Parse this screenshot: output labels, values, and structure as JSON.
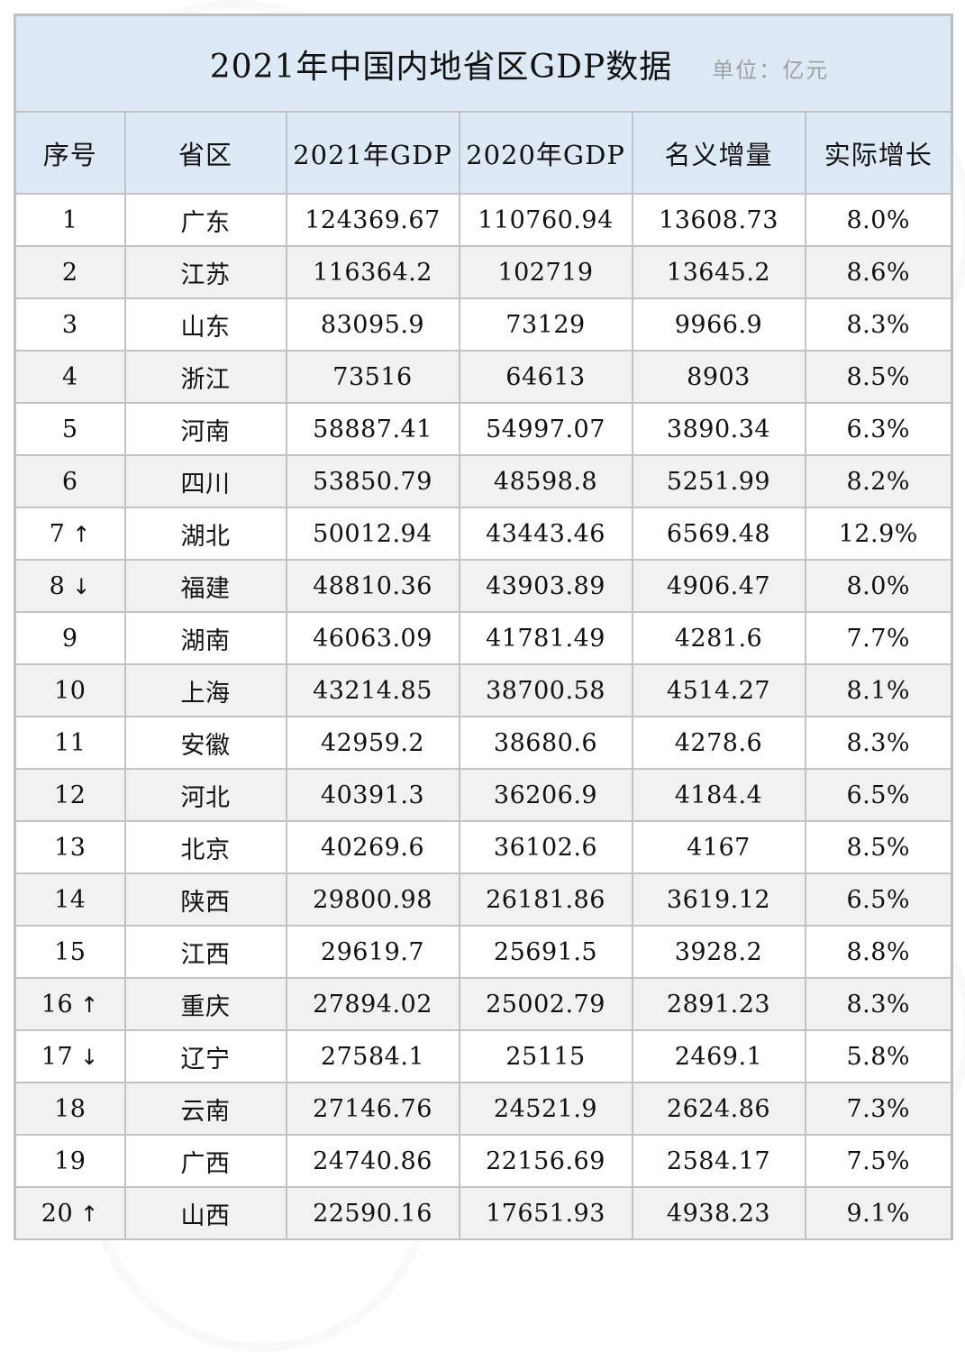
{
  "title": "2021年中国内地省区GDP数据",
  "unit": "单位：亿元",
  "columns": [
    "序号",
    "省区",
    "2021年GDP",
    "2020年GDP",
    "名义增量",
    "实际增长"
  ],
  "rank_change_icons": {
    "up": "↑",
    "down": "↓"
  },
  "rows": [
    {
      "rank": "1",
      "change": "",
      "province": "广东",
      "gdp2021": "124369.67",
      "gdp2020": "110760.94",
      "nominal_increase": "13608.73",
      "real_growth": "8.0%"
    },
    {
      "rank": "2",
      "change": "",
      "province": "江苏",
      "gdp2021": "116364.2",
      "gdp2020": "102719",
      "nominal_increase": "13645.2",
      "real_growth": "8.6%"
    },
    {
      "rank": "3",
      "change": "",
      "province": "山东",
      "gdp2021": "83095.9",
      "gdp2020": "73129",
      "nominal_increase": "9966.9",
      "real_growth": "8.3%"
    },
    {
      "rank": "4",
      "change": "",
      "province": "浙江",
      "gdp2021": "73516",
      "gdp2020": "64613",
      "nominal_increase": "8903",
      "real_growth": "8.5%"
    },
    {
      "rank": "5",
      "change": "",
      "province": "河南",
      "gdp2021": "58887.41",
      "gdp2020": "54997.07",
      "nominal_increase": "3890.34",
      "real_growth": "6.3%"
    },
    {
      "rank": "6",
      "change": "",
      "province": "四川",
      "gdp2021": "53850.79",
      "gdp2020": "48598.8",
      "nominal_increase": "5251.99",
      "real_growth": "8.2%"
    },
    {
      "rank": "7",
      "change": "↑",
      "province": "湖北",
      "gdp2021": "50012.94",
      "gdp2020": "43443.46",
      "nominal_increase": "6569.48",
      "real_growth": "12.9%"
    },
    {
      "rank": "8",
      "change": "↓",
      "province": "福建",
      "gdp2021": "48810.36",
      "gdp2020": "43903.89",
      "nominal_increase": "4906.47",
      "real_growth": "8.0%"
    },
    {
      "rank": "9",
      "change": "",
      "province": "湖南",
      "gdp2021": "46063.09",
      "gdp2020": "41781.49",
      "nominal_increase": "4281.6",
      "real_growth": "7.7%"
    },
    {
      "rank": "10",
      "change": "",
      "province": "上海",
      "gdp2021": "43214.85",
      "gdp2020": "38700.58",
      "nominal_increase": "4514.27",
      "real_growth": "8.1%"
    },
    {
      "rank": "11",
      "change": "",
      "province": "安徽",
      "gdp2021": "42959.2",
      "gdp2020": "38680.6",
      "nominal_increase": "4278.6",
      "real_growth": "8.3%"
    },
    {
      "rank": "12",
      "change": "",
      "province": "河北",
      "gdp2021": "40391.3",
      "gdp2020": "36206.9",
      "nominal_increase": "4184.4",
      "real_growth": "6.5%"
    },
    {
      "rank": "13",
      "change": "",
      "province": "北京",
      "gdp2021": "40269.6",
      "gdp2020": "36102.6",
      "nominal_increase": "4167",
      "real_growth": "8.5%"
    },
    {
      "rank": "14",
      "change": "",
      "province": "陕西",
      "gdp2021": "29800.98",
      "gdp2020": "26181.86",
      "nominal_increase": "3619.12",
      "real_growth": "6.5%"
    },
    {
      "rank": "15",
      "change": "",
      "province": "江西",
      "gdp2021": "29619.7",
      "gdp2020": "25691.5",
      "nominal_increase": "3928.2",
      "real_growth": "8.8%"
    },
    {
      "rank": "16",
      "change": "↑",
      "province": "重庆",
      "gdp2021": "27894.02",
      "gdp2020": "25002.79",
      "nominal_increase": "2891.23",
      "real_growth": "8.3%"
    },
    {
      "rank": "17",
      "change": "↓",
      "province": "辽宁",
      "gdp2021": "27584.1",
      "gdp2020": "25115",
      "nominal_increase": "2469.1",
      "real_growth": "5.8%"
    },
    {
      "rank": "18",
      "change": "",
      "province": "云南",
      "gdp2021": "27146.76",
      "gdp2020": "24521.9",
      "nominal_increase": "2624.86",
      "real_growth": "7.3%"
    },
    {
      "rank": "19",
      "change": "",
      "province": "广西",
      "gdp2021": "24740.86",
      "gdp2020": "22156.69",
      "nominal_increase": "2584.17",
      "real_growth": "7.5%"
    },
    {
      "rank": "20",
      "change": "↑",
      "province": "山西",
      "gdp2021": "22590.16",
      "gdp2020": "17651.93",
      "nominal_increase": "4938.23",
      "real_growth": "9.1%"
    }
  ],
  "colors": {
    "header_bg": "#ddeaf6",
    "row_alt_bg": "#f0f0f0",
    "row_bg": "#ffffff",
    "border": "#c3c3c3",
    "unit_text": "#a0a0a0"
  }
}
